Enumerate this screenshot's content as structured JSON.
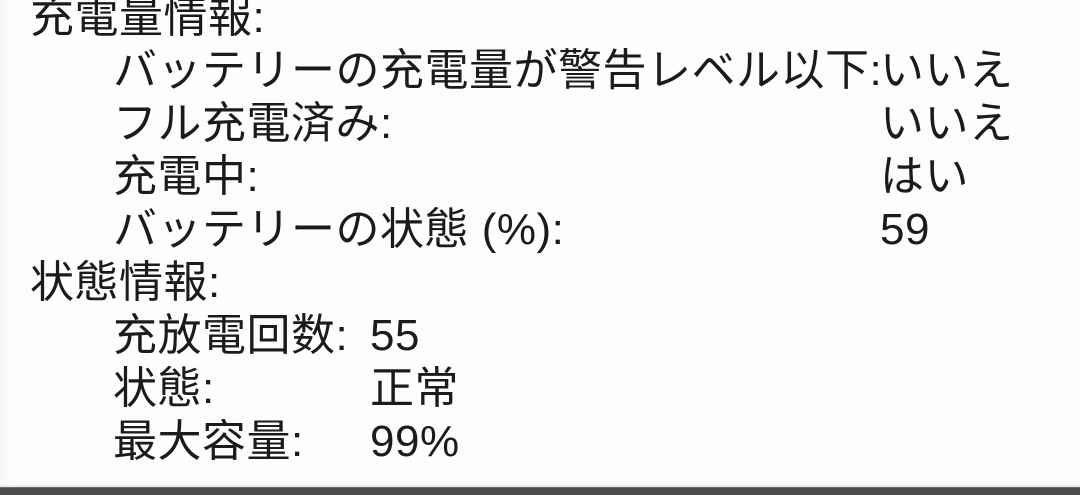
{
  "window": {
    "context": "battery-information-panel",
    "language": "ja"
  },
  "sections": [
    {
      "title": "充電量情報:",
      "rows": [
        {
          "label": "バッテリーの充電量が警告レベル以下:",
          "value": "いいえ"
        },
        {
          "label": "フル充電済み:",
          "value": "いいえ"
        },
        {
          "label": "充電中:",
          "value": "はい"
        },
        {
          "label": "バッテリーの状態 (%):",
          "value": "59"
        }
      ]
    },
    {
      "title": "状態情報:",
      "rows": [
        {
          "label": "充放電回数:",
          "value": "55"
        },
        {
          "label": "状態:",
          "value": "正常"
        },
        {
          "label": "最大容量:",
          "value": "99%"
        }
      ]
    }
  ],
  "colors": {
    "text": "#1b1b1b",
    "background": "#fdfdfd",
    "bottom_bar": "#4c4c4c",
    "bottom_divider": "#ededec"
  }
}
